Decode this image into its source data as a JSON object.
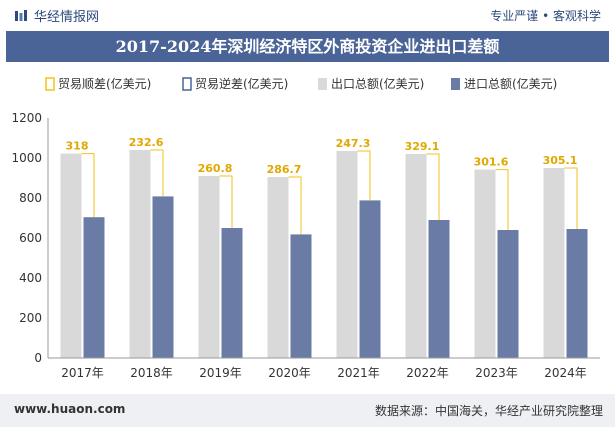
{
  "header": {
    "brand": "华经情报网",
    "slogan": "专业严谨 • 客观科学"
  },
  "title": "2017-2024年深圳经济特区外商投资企业进出口差额",
  "footer": {
    "url": "www.huaon.com",
    "source": "数据来源：中国海关，华经产业研究院整理"
  },
  "colors": {
    "export": "#d9d9d9",
    "import": "#6a7ca6",
    "surplus": "#f3c21a",
    "deficit": "#4a6497",
    "title_bg": "#4a6497"
  },
  "chart_data": {
    "type": "bar",
    "categories": [
      "2017年",
      "2018年",
      "2019年",
      "2020年",
      "2021年",
      "2022年",
      "2023年",
      "2024年"
    ],
    "series": [
      {
        "name": "出口总额(亿美元)",
        "values": [
          1022,
          1040,
          910,
          905,
          1035,
          1020,
          942,
          950
        ]
      },
      {
        "name": "进口总额(亿美元)",
        "values": [
          704,
          808,
          650,
          618,
          788,
          690,
          640,
          645
        ]
      }
    ],
    "balance": {
      "surplus_name": "贸易顺差(亿美元)",
      "deficit_name": "贸易逆差(亿美元)",
      "values": [
        318,
        232.6,
        260.8,
        286.7,
        247.3,
        329.1,
        301.6,
        305.1
      ],
      "labels": [
        "318",
        "232.6",
        "260.8",
        "286.7",
        "247.3",
        "329.1",
        "301.6",
        "305.1"
      ]
    },
    "ylim": [
      0,
      1200
    ],
    "yticks": [
      0,
      200,
      400,
      600,
      800,
      1000,
      1200
    ],
    "legend": "top-left",
    "grid": false
  }
}
